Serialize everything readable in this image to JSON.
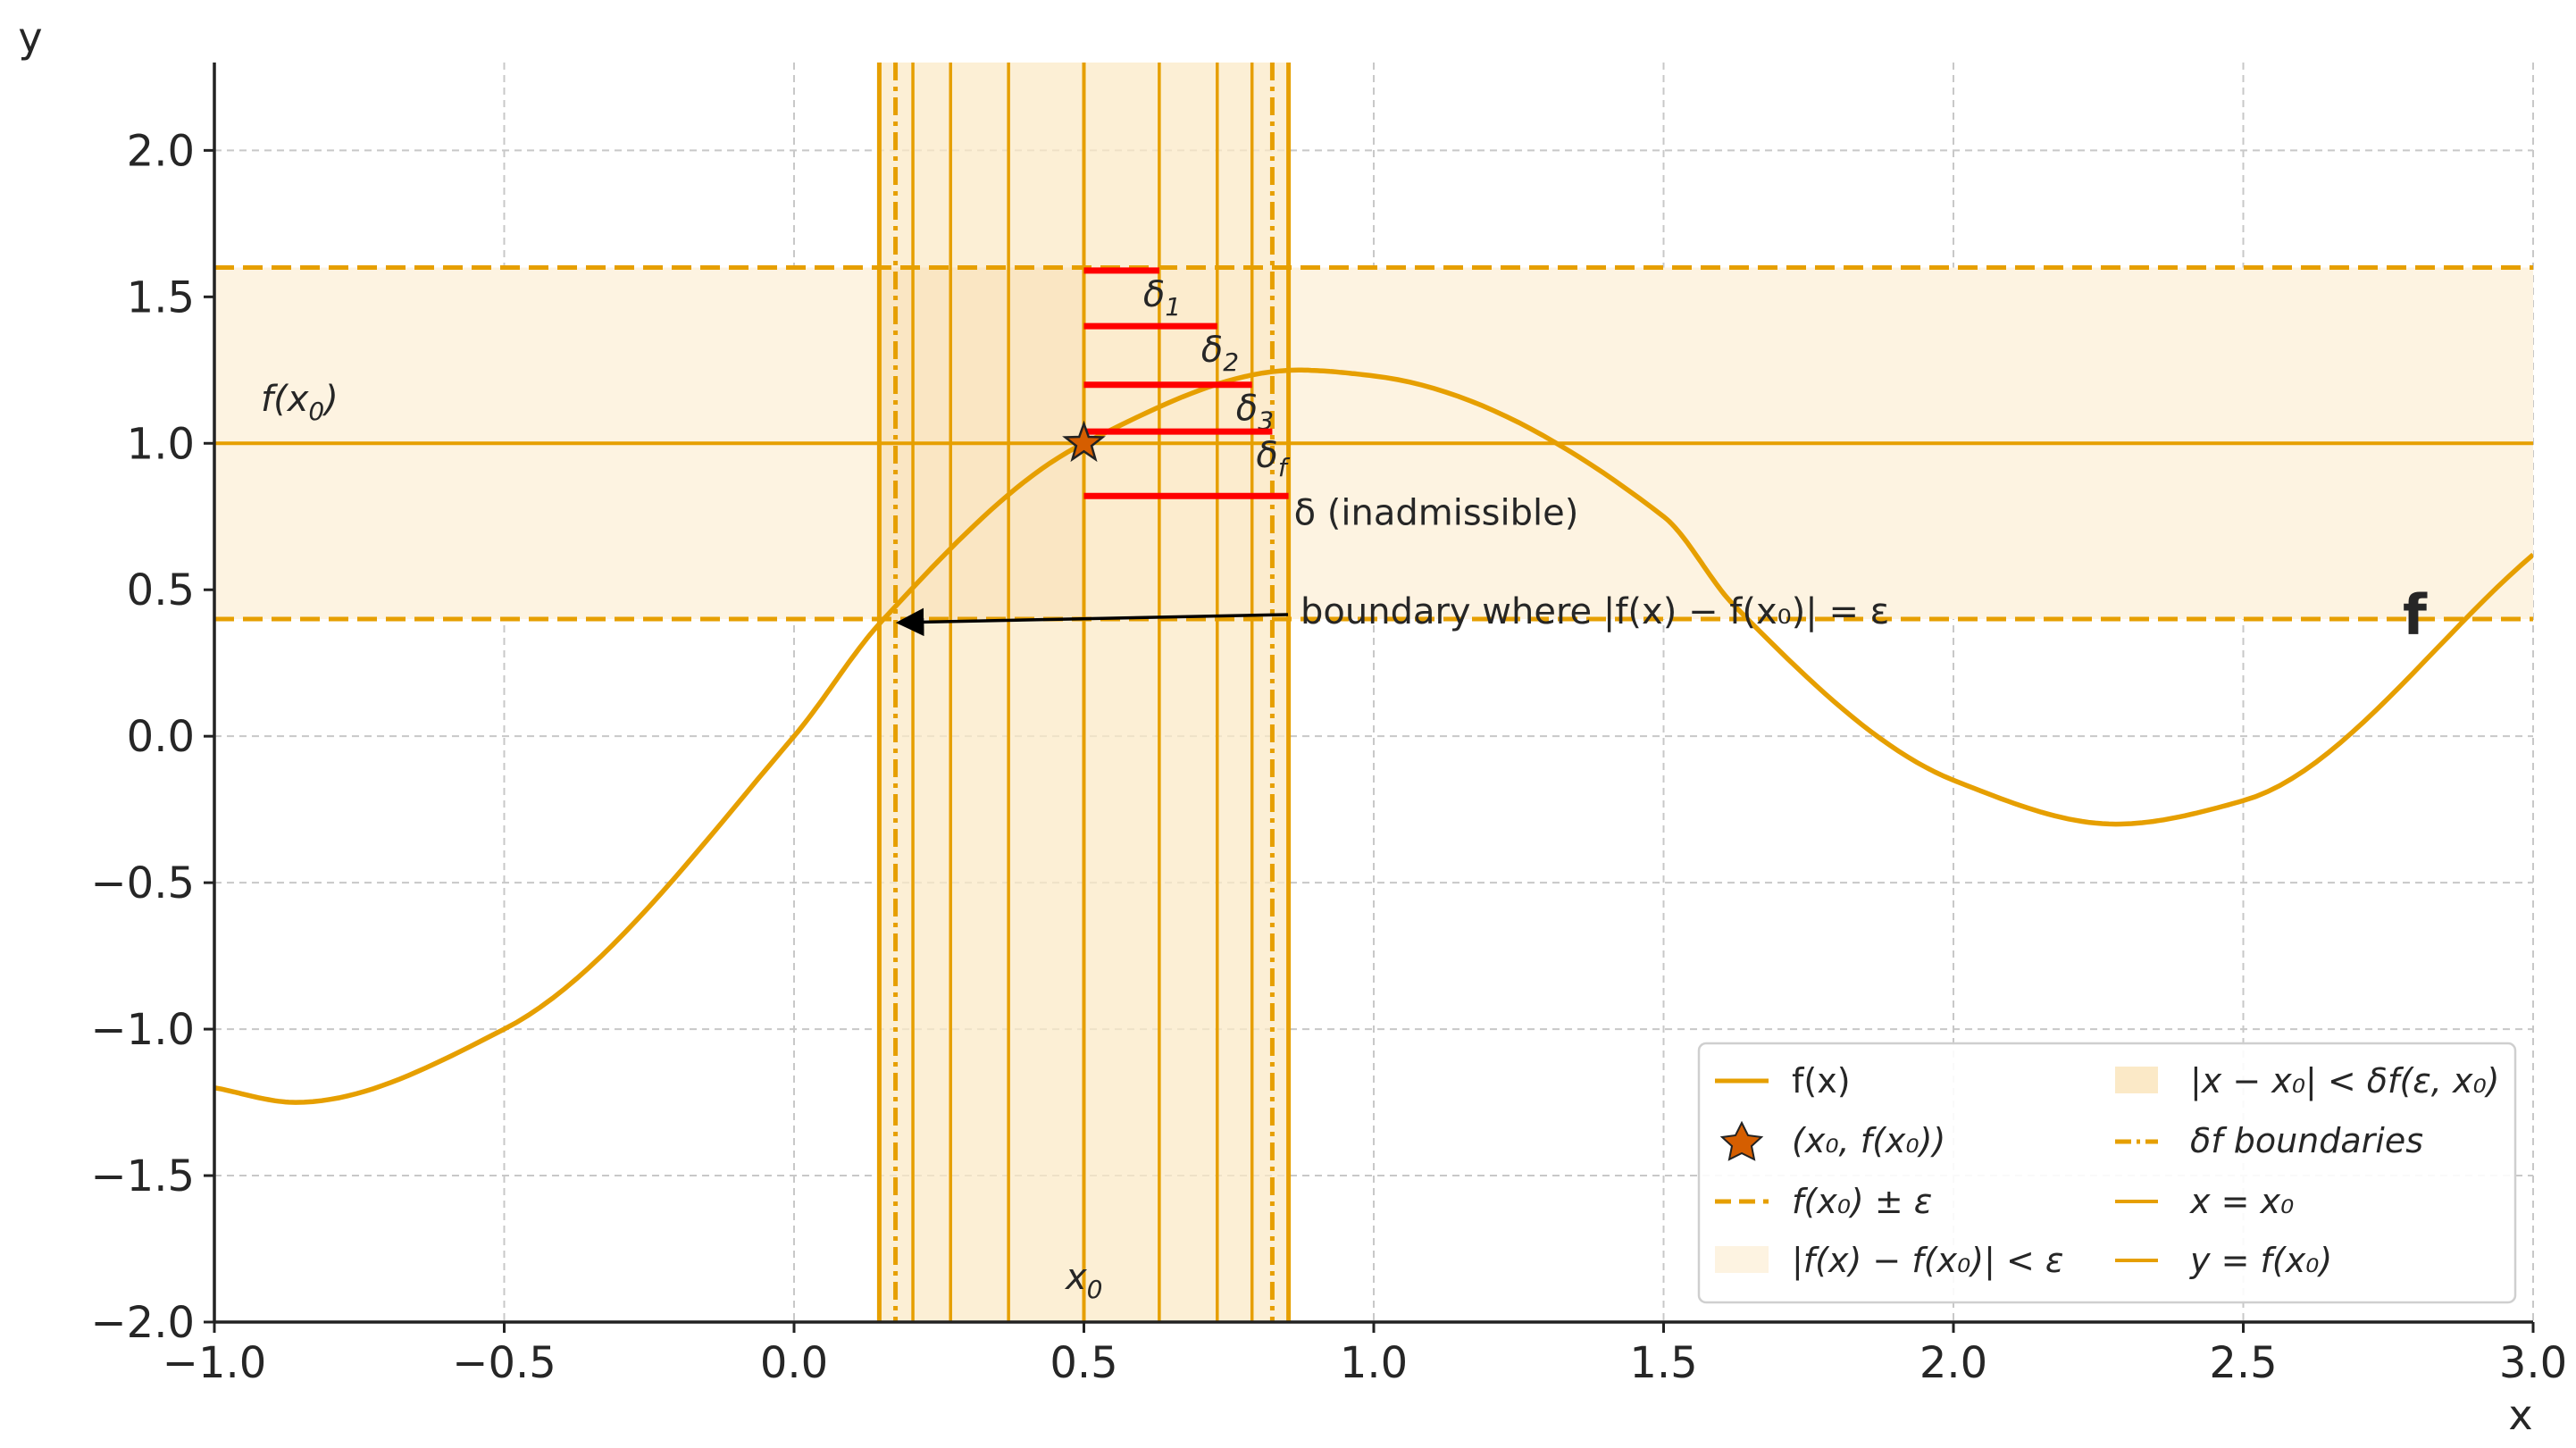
{
  "chart_data": {
    "type": "line",
    "xlabel": "x",
    "ylabel": "y",
    "xlim": [
      -1.0,
      3.0
    ],
    "ylim": [
      -2.0,
      2.3
    ],
    "xticks": [
      "−1.0",
      "−0.5",
      "0.0",
      "0.5",
      "1.0",
      "1.5",
      "2.0",
      "2.5",
      "3.0"
    ],
    "yticks": [
      "−2.0",
      "−1.5",
      "−1.0",
      "−0.5",
      "0.0",
      "0.5",
      "1.0",
      "1.5",
      "2.0"
    ],
    "grid": true,
    "colors": {
      "main": "#e69f00",
      "delta": "#ff0000",
      "band": "#fdf3e1",
      "band_strong": "#fbe9c7",
      "star": "#d55e00",
      "axis": "#222222",
      "grid": "#c8c8c8"
    },
    "series": [
      {
        "name": "f(x)",
        "function": "sin(x*pi*0.85+0.3)+0.3*cos(x*2.1)-0.0",
        "samples": [
          [
            -1.0,
            -1.2
          ],
          [
            -0.86,
            -1.25
          ],
          [
            -0.5,
            -1.0
          ],
          [
            0.0,
            0.0
          ],
          [
            0.15,
            0.39
          ],
          [
            0.5,
            1.0
          ],
          [
            0.87,
            1.25
          ],
          [
            1.0,
            1.23
          ],
          [
            1.5,
            0.75
          ],
          [
            1.62,
            0.45
          ],
          [
            2.0,
            -0.15
          ],
          [
            2.28,
            -0.3
          ],
          [
            2.5,
            -0.22
          ],
          [
            3.0,
            0.62
          ]
        ]
      }
    ],
    "x0": 0.5,
    "fx0": 1.0,
    "epsilon": 0.6,
    "delta_f_boundaries": [
      0.175,
      0.825
    ],
    "shaded_x_interval": [
      0.147,
      0.853
    ],
    "vertical_lines_x": [
      0.205,
      0.27,
      0.37,
      0.63,
      0.73,
      0.79
    ],
    "deltas": [
      {
        "y": 1.59,
        "x_end": 0.63,
        "label": "δ",
        "sub": "1"
      },
      {
        "y": 1.4,
        "x_end": 0.73,
        "label": "δ",
        "sub": "2"
      },
      {
        "y": 1.2,
        "x_end": 0.79,
        "label": "δ",
        "sub": "3"
      },
      {
        "y": 1.04,
        "x_end": 0.825,
        "label": "δ",
        "sub": "f"
      },
      {
        "y": 0.82,
        "x_end": 0.853,
        "label": "δ (inadmissible)",
        "sub": ""
      }
    ],
    "annotations": {
      "fx0_label": "f(x",
      "fx0_sub": "0",
      "fx0_close": ")",
      "x0_label": "x",
      "x0_sub": "0",
      "boundary_text": "boundary where |f(x) − f(x₀)| = ε",
      "f_mark": "f"
    },
    "legend": {
      "placement": "lower-right",
      "entries": [
        {
          "label": "f(x)"
        },
        {
          "label": "|x − x₀| < δf(ε, x₀)"
        },
        {
          "label": "(x₀, f(x₀))"
        },
        {
          "label": "δf boundaries"
        },
        {
          "label": "f(x₀) ± ε"
        },
        {
          "label": "x = x₀"
        },
        {
          "label": "|f(x) − f(x₀)| < ε"
        },
        {
          "label": "y = f(x₀)"
        }
      ]
    }
  }
}
